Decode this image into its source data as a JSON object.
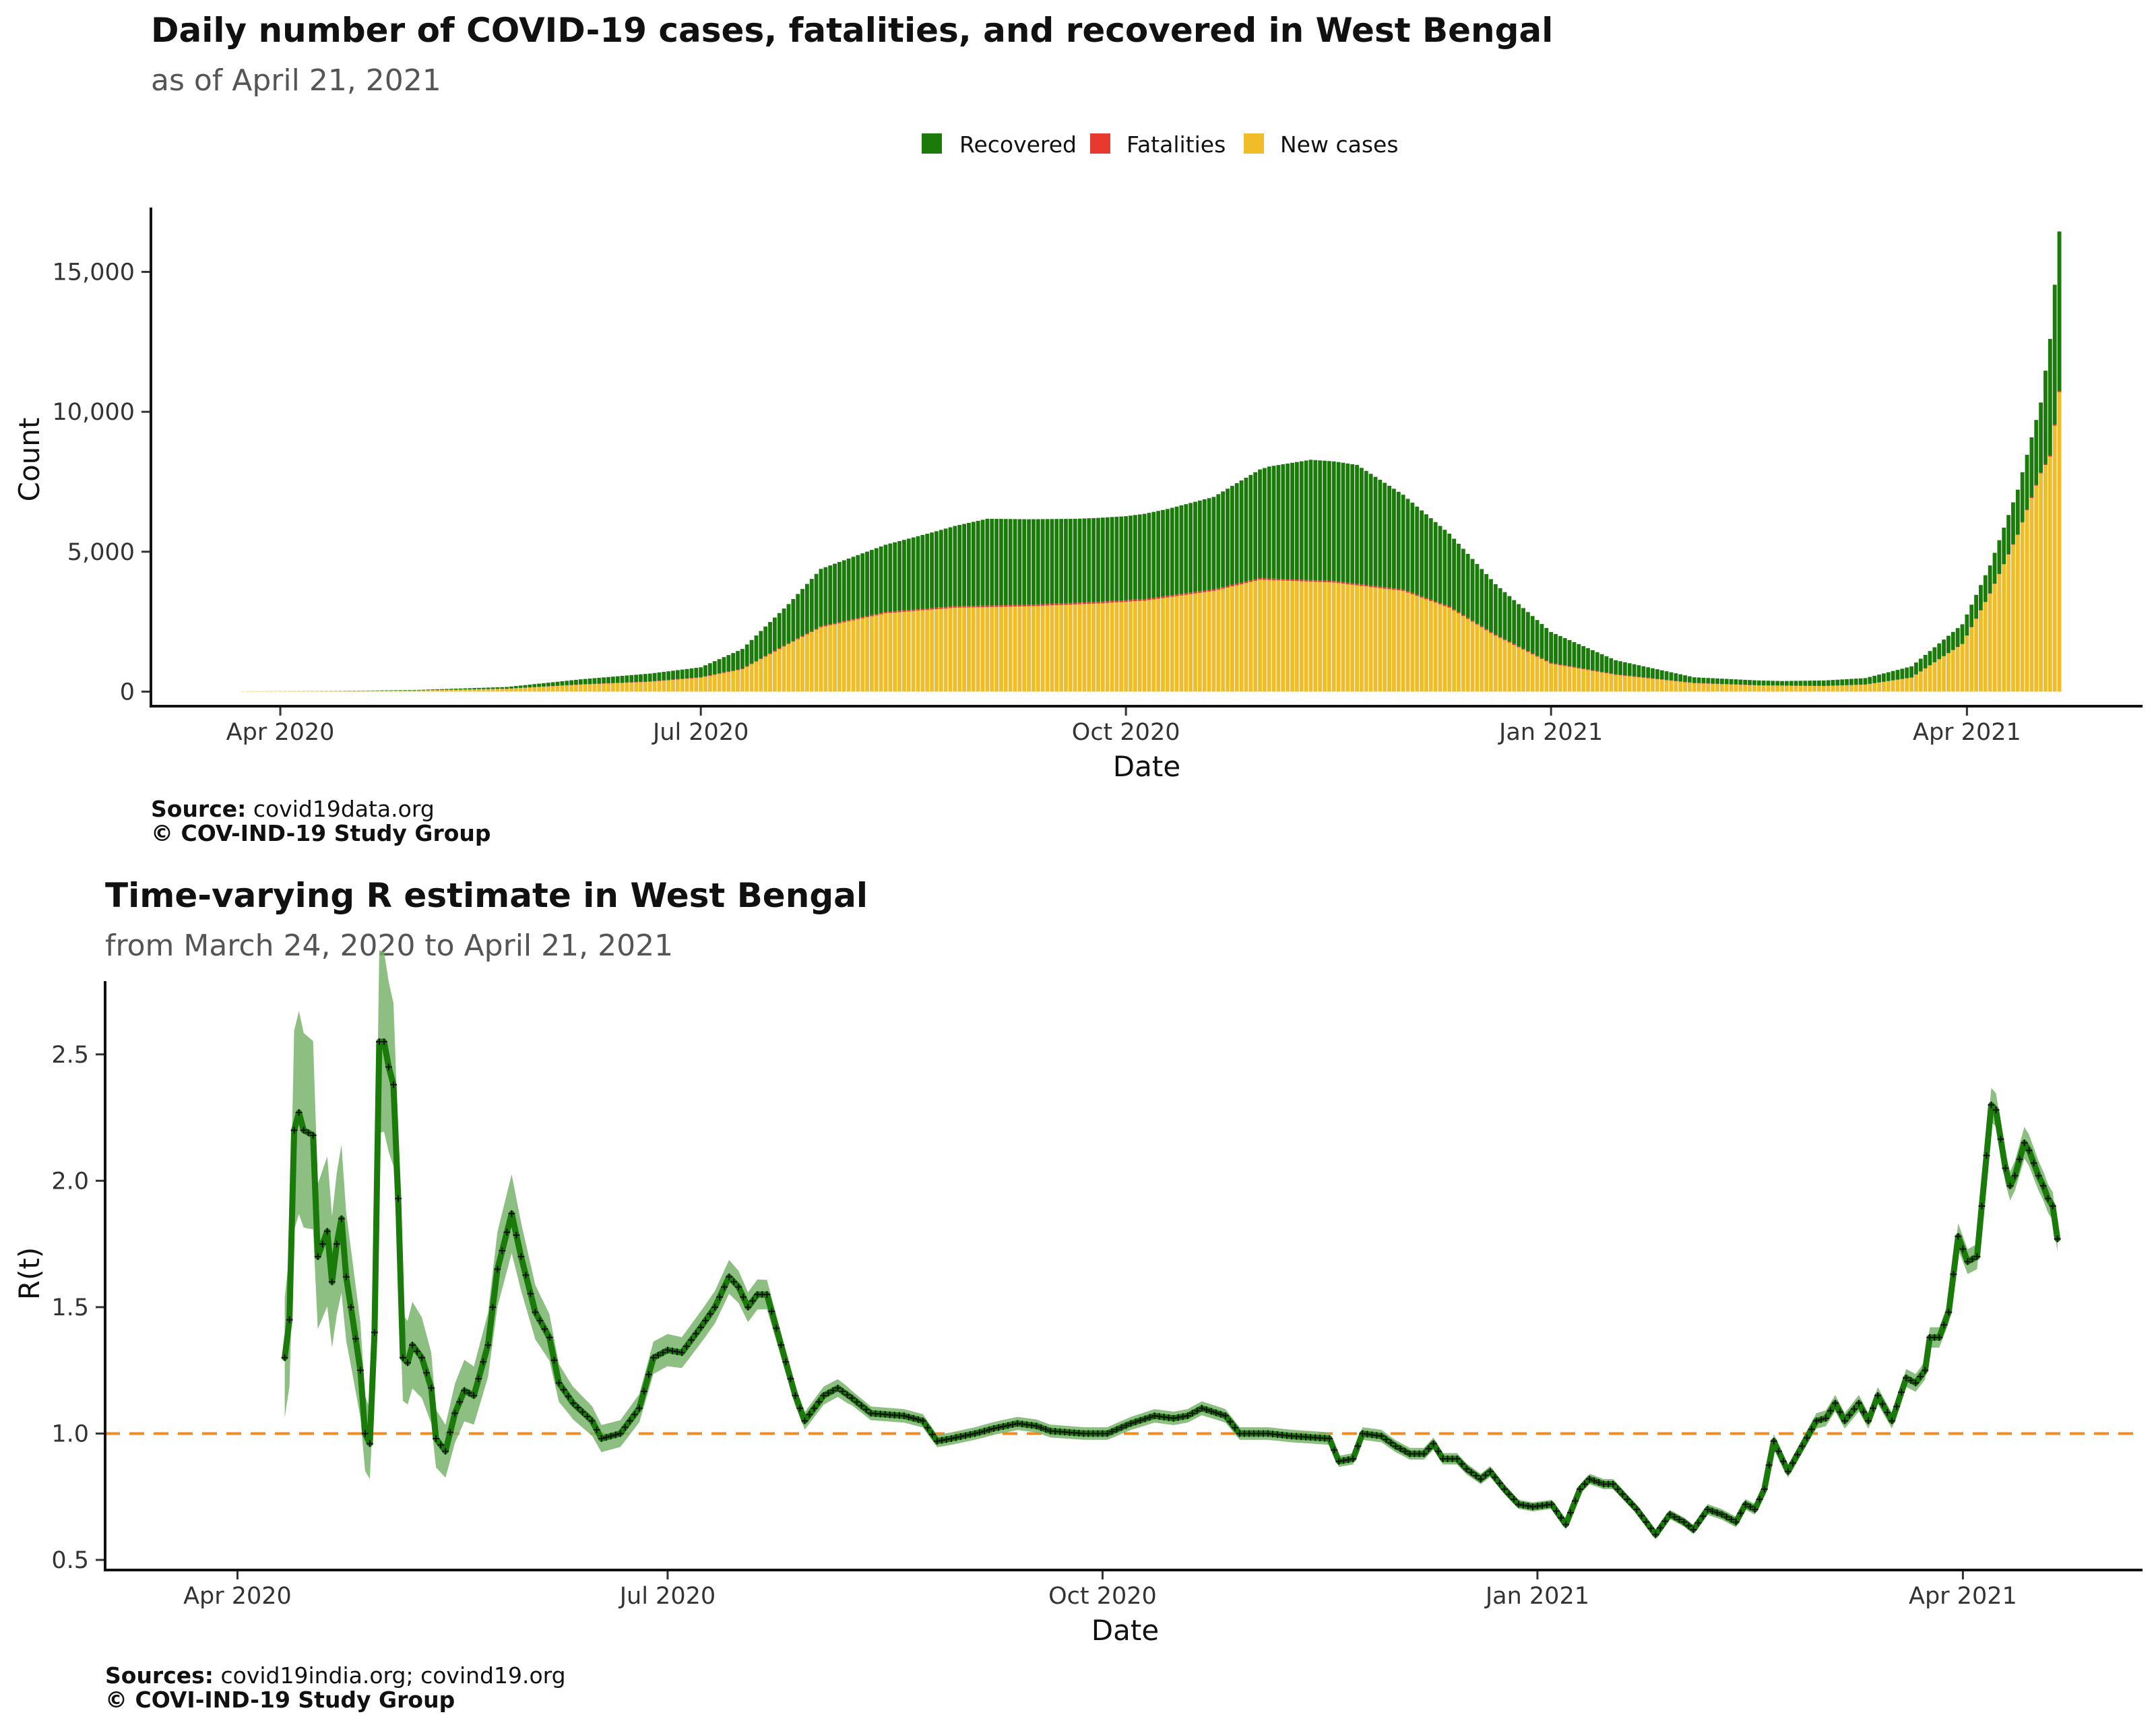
{
  "colors": {
    "recovered": "#1a7a0a",
    "fatalities": "#e8392f",
    "new_cases": "#f0bd28",
    "r_line": "#1a7a0a",
    "r_band": "#79b36c",
    "r_marker": "#111111",
    "reference_line": "#f08a24"
  },
  "chart_data": [
    {
      "type": "bar",
      "stacked": true,
      "title": "Daily number of COVID-19 cases, fatalities, and recovered in West Bengal",
      "subtitle": "as of April 21, 2021",
      "xlabel": "Date",
      "ylabel": "Count",
      "xlim": [
        "2020-03-04",
        "2021-05-09"
      ],
      "ylim": [
        -520,
        17300
      ],
      "x_ticks": [
        {
          "date": "2020-04-01",
          "label": "Apr 2020"
        },
        {
          "date": "2020-07-01",
          "label": "Jul 2020"
        },
        {
          "date": "2020-10-01",
          "label": "Oct 2020"
        },
        {
          "date": "2021-01-01",
          "label": "Jan 2021"
        },
        {
          "date": "2021-04-01",
          "label": "Apr 2021"
        }
      ],
      "y_ticks": [
        {
          "value": 0,
          "label": "0"
        },
        {
          "value": 5000,
          "label": "5,000"
        },
        {
          "value": 10000,
          "label": "10,000"
        },
        {
          "value": 15000,
          "label": "15,000"
        }
      ],
      "legend": {
        "position": "top",
        "items": [
          {
            "key": "recovered",
            "label": "Recovered"
          },
          {
            "key": "fatalities",
            "label": "Fatalities"
          },
          {
            "key": "new_cases",
            "label": "New cases"
          }
        ]
      },
      "series_keys": [
        "new_cases",
        "fatalities",
        "recovered"
      ],
      "anchors": {
        "new_cases": [
          [
            "2020-03-24",
            10
          ],
          [
            "2020-04-15",
            20
          ],
          [
            "2020-05-01",
            40
          ],
          [
            "2020-05-20",
            100
          ],
          [
            "2020-06-05",
            250
          ],
          [
            "2020-06-20",
            350
          ],
          [
            "2020-07-01",
            500
          ],
          [
            "2020-07-10",
            800
          ],
          [
            "2020-07-20",
            1700
          ],
          [
            "2020-07-27",
            2300
          ],
          [
            "2020-08-10",
            2800
          ],
          [
            "2020-08-25",
            3000
          ],
          [
            "2020-09-10",
            3050
          ],
          [
            "2020-09-25",
            3150
          ],
          [
            "2020-10-05",
            3250
          ],
          [
            "2020-10-20",
            3600
          ],
          [
            "2020-10-30",
            4000
          ],
          [
            "2020-11-15",
            3900
          ],
          [
            "2020-11-30",
            3600
          ],
          [
            "2020-12-10",
            3000
          ],
          [
            "2020-12-20",
            2000
          ],
          [
            "2021-01-01",
            1000
          ],
          [
            "2021-01-15",
            600
          ],
          [
            "2021-02-01",
            300
          ],
          [
            "2021-02-15",
            220
          ],
          [
            "2021-03-01",
            200
          ],
          [
            "2021-03-10",
            250
          ],
          [
            "2021-03-20",
            500
          ],
          [
            "2021-03-31",
            1700
          ],
          [
            "2021-04-06",
            3500
          ],
          [
            "2021-04-12",
            5600
          ],
          [
            "2021-04-17",
            7800
          ],
          [
            "2021-04-19",
            8400
          ],
          [
            "2021-04-20",
            9500
          ],
          [
            "2021-04-21",
            10700
          ]
        ],
        "fatalities": [
          [
            "2020-03-24",
            0
          ],
          [
            "2020-05-01",
            3
          ],
          [
            "2020-06-01",
            8
          ],
          [
            "2020-07-01",
            20
          ],
          [
            "2020-07-20",
            30
          ],
          [
            "2020-08-10",
            50
          ],
          [
            "2020-09-10",
            58
          ],
          [
            "2020-10-10",
            60
          ],
          [
            "2020-11-10",
            55
          ],
          [
            "2020-12-01",
            50
          ],
          [
            "2020-12-20",
            40
          ],
          [
            "2021-01-10",
            25
          ],
          [
            "2021-02-01",
            12
          ],
          [
            "2021-03-01",
            3
          ],
          [
            "2021-03-25",
            4
          ],
          [
            "2021-04-10",
            12
          ],
          [
            "2021-04-21",
            45
          ]
        ],
        "recovered": [
          [
            "2020-03-24",
            0
          ],
          [
            "2020-04-15",
            5
          ],
          [
            "2020-05-01",
            20
          ],
          [
            "2020-05-20",
            60
          ],
          [
            "2020-06-05",
            180
          ],
          [
            "2020-06-20",
            280
          ],
          [
            "2020-07-01",
            350
          ],
          [
            "2020-07-10",
            700
          ],
          [
            "2020-07-20",
            1400
          ],
          [
            "2020-07-27",
            2050
          ],
          [
            "2020-08-10",
            2400
          ],
          [
            "2020-08-20",
            2700
          ],
          [
            "2020-09-01",
            3100
          ],
          [
            "2020-09-20",
            3000
          ],
          [
            "2020-10-01",
            3000
          ],
          [
            "2020-10-10",
            3100
          ],
          [
            "2020-10-20",
            3300
          ],
          [
            "2020-11-01",
            4000
          ],
          [
            "2020-11-10",
            4300
          ],
          [
            "2020-11-20",
            4250
          ],
          [
            "2020-12-01",
            3300
          ],
          [
            "2020-12-10",
            2600
          ],
          [
            "2020-12-20",
            1800
          ],
          [
            "2021-01-01",
            1100
          ],
          [
            "2021-01-15",
            500
          ],
          [
            "2021-02-01",
            200
          ],
          [
            "2021-02-20",
            160
          ],
          [
            "2021-03-10",
            230
          ],
          [
            "2021-03-20",
            400
          ],
          [
            "2021-03-31",
            700
          ],
          [
            "2021-04-06",
            1000
          ],
          [
            "2021-04-12",
            1600
          ],
          [
            "2021-04-17",
            2500
          ],
          [
            "2021-04-20",
            5000
          ],
          [
            "2021-04-21",
            5700
          ]
        ]
      }
    },
    {
      "type": "line",
      "title": "Time-varying R estimate in West Bengal",
      "subtitle": "from March 24, 2020 to April 21, 2021",
      "xlabel": "Date",
      "ylabel": "R(t)",
      "xlim": [
        "2020-03-04",
        "2021-05-09"
      ],
      "ylim": [
        0.46,
        2.79
      ],
      "reference_line": 1.0,
      "x_ticks": [
        {
          "date": "2020-04-01",
          "label": "Apr 2020"
        },
        {
          "date": "2020-07-01",
          "label": "Jul 2020"
        },
        {
          "date": "2020-10-01",
          "label": "Oct 2020"
        },
        {
          "date": "2021-01-01",
          "label": "Jan 2021"
        },
        {
          "date": "2021-04-01",
          "label": "Apr 2021"
        }
      ],
      "y_ticks": [
        {
          "value": 0.5,
          "label": "0.5"
        },
        {
          "value": 1.0,
          "label": "1.0"
        },
        {
          "value": 1.5,
          "label": "1.5"
        },
        {
          "value": 2.0,
          "label": "2.0"
        },
        {
          "value": 2.5,
          "label": "2.5"
        }
      ],
      "r_anchors": [
        [
          "2020-04-11",
          1.3
        ],
        [
          "2020-04-12",
          1.45
        ],
        [
          "2020-04-13",
          2.2
        ],
        [
          "2020-04-14",
          2.27
        ],
        [
          "2020-04-15",
          2.2
        ],
        [
          "2020-04-17",
          2.18
        ],
        [
          "2020-04-18",
          1.7
        ],
        [
          "2020-04-20",
          1.8
        ],
        [
          "2020-04-21",
          1.6
        ],
        [
          "2020-04-22",
          1.75
        ],
        [
          "2020-04-23",
          1.85
        ],
        [
          "2020-04-24",
          1.62
        ],
        [
          "2020-04-25",
          1.5
        ],
        [
          "2020-04-27",
          1.25
        ],
        [
          "2020-04-28",
          1.0
        ],
        [
          "2020-04-29",
          0.96
        ],
        [
          "2020-04-30",
          1.4
        ],
        [
          "2020-05-01",
          2.55
        ],
        [
          "2020-05-02",
          2.55
        ],
        [
          "2020-05-03",
          2.45
        ],
        [
          "2020-05-04",
          2.38
        ],
        [
          "2020-05-05",
          1.93
        ],
        [
          "2020-05-06",
          1.3
        ],
        [
          "2020-05-07",
          1.28
        ],
        [
          "2020-05-08",
          1.35
        ],
        [
          "2020-05-10",
          1.3
        ],
        [
          "2020-05-12",
          1.18
        ],
        [
          "2020-05-13",
          0.98
        ],
        [
          "2020-05-15",
          0.93
        ],
        [
          "2020-05-17",
          1.08
        ],
        [
          "2020-05-19",
          1.17
        ],
        [
          "2020-05-21",
          1.15
        ],
        [
          "2020-05-24",
          1.35
        ],
        [
          "2020-05-26",
          1.65
        ],
        [
          "2020-05-29",
          1.87
        ],
        [
          "2020-05-31",
          1.7
        ],
        [
          "2020-06-03",
          1.48
        ],
        [
          "2020-06-06",
          1.38
        ],
        [
          "2020-06-08",
          1.2
        ],
        [
          "2020-06-11",
          1.12
        ],
        [
          "2020-06-15",
          1.05
        ],
        [
          "2020-06-17",
          0.98
        ],
        [
          "2020-06-21",
          1.0
        ],
        [
          "2020-06-25",
          1.1
        ],
        [
          "2020-06-28",
          1.3
        ],
        [
          "2020-07-01",
          1.33
        ],
        [
          "2020-07-04",
          1.32
        ],
        [
          "2020-07-08",
          1.42
        ],
        [
          "2020-07-11",
          1.5
        ],
        [
          "2020-07-14",
          1.62
        ],
        [
          "2020-07-16",
          1.58
        ],
        [
          "2020-07-18",
          1.5
        ],
        [
          "2020-07-20",
          1.55
        ],
        [
          "2020-07-22",
          1.55
        ],
        [
          "2020-07-25",
          1.35
        ],
        [
          "2020-07-28",
          1.15
        ],
        [
          "2020-07-30",
          1.05
        ],
        [
          "2020-08-03",
          1.15
        ],
        [
          "2020-08-06",
          1.18
        ],
        [
          "2020-08-09",
          1.14
        ],
        [
          "2020-08-13",
          1.08
        ],
        [
          "2020-08-20",
          1.07
        ],
        [
          "2020-08-24",
          1.05
        ],
        [
          "2020-08-27",
          0.97
        ],
        [
          "2020-08-30",
          0.98
        ],
        [
          "2020-09-04",
          1.0
        ],
        [
          "2020-09-08",
          1.02
        ],
        [
          "2020-09-13",
          1.04
        ],
        [
          "2020-09-17",
          1.03
        ],
        [
          "2020-09-20",
          1.01
        ],
        [
          "2020-09-27",
          1.0
        ],
        [
          "2020-10-02",
          1.0
        ],
        [
          "2020-10-07",
          1.04
        ],
        [
          "2020-10-12",
          1.07
        ],
        [
          "2020-10-16",
          1.06
        ],
        [
          "2020-10-19",
          1.07
        ],
        [
          "2020-10-22",
          1.1
        ],
        [
          "2020-10-27",
          1.07
        ],
        [
          "2020-10-30",
          1.0
        ],
        [
          "2020-11-05",
          1.0
        ],
        [
          "2020-11-10",
          0.99
        ],
        [
          "2020-11-18",
          0.98
        ],
        [
          "2020-11-20",
          0.89
        ],
        [
          "2020-11-23",
          0.9
        ],
        [
          "2020-11-25",
          1.0
        ],
        [
          "2020-11-29",
          0.99
        ],
        [
          "2020-12-02",
          0.95
        ],
        [
          "2020-12-05",
          0.92
        ],
        [
          "2020-12-08",
          0.92
        ],
        [
          "2020-12-10",
          0.96
        ],
        [
          "2020-12-12",
          0.9
        ],
        [
          "2020-12-15",
          0.9
        ],
        [
          "2020-12-17",
          0.86
        ],
        [
          "2020-12-20",
          0.82
        ],
        [
          "2020-12-22",
          0.85
        ],
        [
          "2020-12-25",
          0.78
        ],
        [
          "2020-12-28",
          0.72
        ],
        [
          "2020-12-31",
          0.71
        ],
        [
          "2021-01-04",
          0.72
        ],
        [
          "2021-01-07",
          0.64
        ],
        [
          "2021-01-10",
          0.78
        ],
        [
          "2021-01-12",
          0.82
        ],
        [
          "2021-01-15",
          0.8
        ],
        [
          "2021-01-17",
          0.8
        ],
        [
          "2021-01-20",
          0.74
        ],
        [
          "2021-01-22",
          0.7
        ],
        [
          "2021-01-24",
          0.65
        ],
        [
          "2021-01-26",
          0.6
        ],
        [
          "2021-01-29",
          0.68
        ],
        [
          "2021-02-01",
          0.65
        ],
        [
          "2021-02-03",
          0.62
        ],
        [
          "2021-02-06",
          0.7
        ],
        [
          "2021-02-09",
          0.68
        ],
        [
          "2021-02-12",
          0.65
        ],
        [
          "2021-02-14",
          0.72
        ],
        [
          "2021-02-16",
          0.7
        ],
        [
          "2021-02-18",
          0.78
        ],
        [
          "2021-02-20",
          0.97
        ],
        [
          "2021-02-23",
          0.85
        ],
        [
          "2021-02-26",
          0.95
        ],
        [
          "2021-03-01",
          1.05
        ],
        [
          "2021-03-03",
          1.06
        ],
        [
          "2021-03-05",
          1.12
        ],
        [
          "2021-03-07",
          1.05
        ],
        [
          "2021-03-10",
          1.12
        ],
        [
          "2021-03-12",
          1.05
        ],
        [
          "2021-03-14",
          1.15
        ],
        [
          "2021-03-17",
          1.05
        ],
        [
          "2021-03-20",
          1.22
        ],
        [
          "2021-03-22",
          1.2
        ],
        [
          "2021-03-24",
          1.25
        ],
        [
          "2021-03-25",
          1.38
        ],
        [
          "2021-03-27",
          1.38
        ],
        [
          "2021-03-29",
          1.48
        ],
        [
          "2021-03-31",
          1.78
        ],
        [
          "2021-04-02",
          1.68
        ],
        [
          "2021-04-04",
          1.7
        ],
        [
          "2021-04-06",
          2.1
        ],
        [
          "2021-04-07",
          2.3
        ],
        [
          "2021-04-08",
          2.28
        ],
        [
          "2021-04-10",
          2.05
        ],
        [
          "2021-04-11",
          1.98
        ],
        [
          "2021-04-12",
          2.02
        ],
        [
          "2021-04-14",
          2.15
        ],
        [
          "2021-04-15",
          2.12
        ],
        [
          "2021-04-17",
          2.02
        ],
        [
          "2021-04-18",
          1.98
        ],
        [
          "2021-04-19",
          1.93
        ],
        [
          "2021-04-20",
          1.9
        ],
        [
          "2021-04-21",
          1.77
        ]
      ]
    }
  ],
  "captions": [
    {
      "label": "Source:",
      "text": " covid19data.org",
      "copyright": "© COV-IND-19 Study Group"
    },
    {
      "label": "Sources:",
      "text": " covid19india.org; covind19.org",
      "copyright": "© COVI-IND-19 Study Group"
    }
  ]
}
